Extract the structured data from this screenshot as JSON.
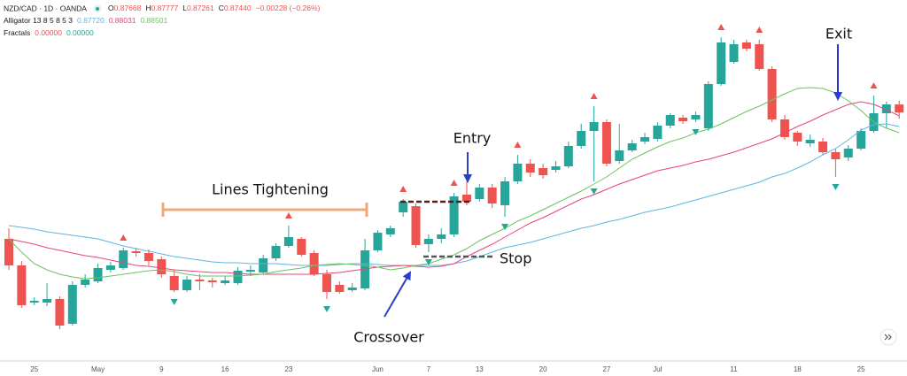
{
  "header": {
    "symbol": "NZD/CAD · 1D · OANDA",
    "quote": [
      {
        "key": "O",
        "value": "0.87668"
      },
      {
        "key": "H",
        "value": "0.87777"
      },
      {
        "key": "L",
        "value": "0.87261"
      },
      {
        "key": "C",
        "value": "0.87440"
      }
    ],
    "change": "−0.00228 (−0.26%)",
    "alligator": {
      "label": "Alligator 13 8 5 8 5 3",
      "values": [
        "0.87720",
        "0.88031",
        "0.88501"
      ]
    },
    "fractals": {
      "label": "Fractals",
      "values": [
        "0.00000",
        "0.00000"
      ]
    }
  },
  "chart_data": {
    "type": "candlestick",
    "categories": [
      null,
      null,
      "25",
      null,
      null,
      null,
      null,
      "May",
      null,
      null,
      null,
      null,
      "9",
      null,
      null,
      null,
      null,
      "16",
      null,
      null,
      null,
      null,
      "23",
      null,
      null,
      null,
      null,
      null,
      null,
      "Jun",
      null,
      null,
      null,
      "7",
      null,
      null,
      null,
      "13",
      null,
      null,
      null,
      null,
      "20",
      null,
      null,
      null,
      null,
      "27",
      null,
      null,
      null,
      "Jul",
      null,
      null,
      null,
      null,
      null,
      "11",
      null,
      null,
      null,
      null,
      "18",
      null,
      null,
      null,
      null,
      "25",
      null,
      null,
      null
    ],
    "open": [
      0.8387,
      0.8312,
      0.8207,
      0.8207,
      0.8217,
      0.8147,
      0.8257,
      0.8267,
      0.82995,
      0.83045,
      0.8352,
      0.8347,
      0.83295,
      0.8282,
      0.8242,
      0.8272,
      0.82695,
      0.8262,
      0.8262,
      0.82945,
      0.8292,
      0.8332,
      0.8367,
      0.8387,
      0.8347,
      0.8287,
      0.8257,
      0.8242,
      0.8247,
      0.83545,
      0.83995,
      0.8462,
      0.84795,
      0.8372,
      0.8387,
      0.83995,
      0.8512,
      0.84995,
      0.8532,
      0.8482,
      0.85495,
      0.85995,
      0.8587,
      0.8582,
      0.8592,
      0.86495,
      0.8692,
      0.8717,
      0.8607,
      0.8637,
      0.8662,
      0.86695,
      0.8707,
      0.87295,
      0.87245,
      0.86995,
      0.88245,
      0.8887,
      0.8942,
      0.8937,
      0.8867,
      0.87245,
      0.8687,
      0.8657,
      0.8662,
      0.8632,
      0.8617,
      0.8642,
      0.8692,
      0.8742,
      0.87668
    ],
    "high": [
      0.8417,
      0.83245,
      0.8222,
      0.8262,
      0.82245,
      0.8267,
      0.8287,
      0.8317,
      0.8322,
      0.8362,
      0.8362,
      0.8357,
      0.8337,
      0.82995,
      0.8282,
      0.8287,
      0.8277,
      0.8282,
      0.8307,
      0.8312,
      0.8342,
      0.83745,
      0.84245,
      0.8392,
      0.83545,
      0.82995,
      0.8267,
      0.8262,
      0.8387,
      0.8412,
      0.84245,
      0.84995,
      0.8487,
      0.83995,
      0.8417,
      0.8517,
      0.85495,
      0.8542,
      0.8542,
      0.8562,
      0.86245,
      0.8612,
      0.85995,
      0.8607,
      0.8662,
      0.8712,
      0.8762,
      0.87245,
      0.8712,
      0.8667,
      0.8687,
      0.8717,
      0.8742,
      0.8737,
      0.8747,
      0.8832,
      0.8957,
      0.89495,
      0.89495,
      0.89495,
      0.88745,
      0.8737,
      0.8692,
      0.8682,
      0.8672,
      0.8642,
      0.8652,
      0.86995,
      0.8792,
      0.87745,
      0.87777
    ],
    "low": [
      0.82995,
      0.8192,
      0.81995,
      0.8197,
      0.8132,
      0.8142,
      0.82495,
      0.8262,
      0.8292,
      0.82995,
      0.8337,
      0.8312,
      0.8277,
      0.8237,
      0.8237,
      0.8242,
      0.82495,
      0.8257,
      0.8257,
      0.8282,
      0.8287,
      0.83245,
      0.8362,
      0.8337,
      0.8282,
      0.8217,
      0.8232,
      0.8237,
      0.8242,
      0.83495,
      0.8392,
      0.84495,
      0.8362,
      0.83495,
      0.83745,
      0.8392,
      0.8482,
      0.8492,
      0.84745,
      0.84495,
      0.8542,
      0.8562,
      0.8557,
      0.85745,
      0.8587,
      0.8642,
      0.85495,
      0.8592,
      0.85995,
      0.8632,
      0.86545,
      0.8662,
      0.86995,
      0.8712,
      0.8717,
      0.8692,
      0.88195,
      0.8882,
      0.8917,
      0.8862,
      0.8717,
      0.8667,
      0.86495,
      0.8647,
      0.86245,
      0.8562,
      0.8607,
      0.8637,
      0.8687,
      0.86995,
      0.87261
    ],
    "close": [
      0.8312,
      0.81995,
      0.8212,
      0.8217,
      0.8142,
      0.8257,
      0.8272,
      0.83045,
      0.8312,
      0.83545,
      0.8347,
      0.83245,
      0.8287,
      0.8242,
      0.8272,
      0.8267,
      0.82645,
      0.82695,
      0.8297,
      0.82995,
      0.8332,
      0.8367,
      0.8392,
      0.8342,
      0.8287,
      0.8237,
      0.8237,
      0.82495,
      0.83545,
      0.84045,
      0.8417,
      0.8492,
      0.83695,
      0.8387,
      0.83995,
      0.8507,
      0.8492,
      0.8532,
      0.8487,
      0.85495,
      0.85995,
      0.85745,
      0.8567,
      0.8592,
      0.86495,
      0.8692,
      0.8717,
      0.85995,
      0.8637,
      0.8657,
      0.86745,
      0.8707,
      0.8737,
      0.87195,
      0.8737,
      0.88245,
      0.8942,
      0.8937,
      0.89245,
      0.8867,
      0.87245,
      0.86745,
      0.8662,
      0.8667,
      0.8632,
      0.8612,
      0.8642,
      0.8692,
      0.8742,
      0.8767,
      0.8744
    ],
    "up_color": "#26a69a",
    "down_color": "#ef5350",
    "overlays": [
      {
        "color": "#5fb4e2",
        "values": [
          0.84245,
          0.84195,
          0.84145,
          0.8407,
          0.8402,
          0.8397,
          0.8392,
          0.8387,
          0.8377,
          0.8367,
          0.83595,
          0.8352,
          0.83445,
          0.8337,
          0.8332,
          0.8327,
          0.8322,
          0.83195,
          0.83195,
          0.8317,
          0.8317,
          0.8317,
          0.83145,
          0.8312,
          0.8312,
          0.8312,
          0.83145,
          0.8317,
          0.8317,
          0.83145,
          0.8312,
          0.8312,
          0.8312,
          0.8312,
          0.8312,
          0.8317,
          0.83245,
          0.8337,
          0.83495,
          0.8362,
          0.83695,
          0.8377,
          0.8387,
          0.8397,
          0.8407,
          0.8417,
          0.84245,
          0.84345,
          0.8442,
          0.8452,
          0.8462,
          0.84695,
          0.8477,
          0.8487,
          0.8497,
          0.8507,
          0.8517,
          0.8527,
          0.8537,
          0.8547,
          0.8562,
          0.8572,
          0.8587,
          0.86045,
          0.86245,
          0.8642,
          0.8667,
          0.86945,
          0.87095,
          0.8712,
          0.87045
        ]
      },
      {
        "color": "#e8457a",
        "values": [
          0.8387,
          0.83795,
          0.8372,
          0.8362,
          0.83545,
          0.8347,
          0.83395,
          0.83345,
          0.8327,
          0.83195,
          0.8312,
          0.83095,
          0.83045,
          0.82995,
          0.8297,
          0.82945,
          0.8292,
          0.8292,
          0.82895,
          0.8287,
          0.8287,
          0.8287,
          0.8287,
          0.8287,
          0.8287,
          0.82895,
          0.8292,
          0.8297,
          0.8302,
          0.8307,
          0.83095,
          0.8312,
          0.83095,
          0.8307,
          0.83095,
          0.8317,
          0.8337,
          0.83545,
          0.8372,
          0.8392,
          0.8412,
          0.8432,
          0.8447,
          0.84645,
          0.8482,
          0.84995,
          0.8512,
          0.8527,
          0.8542,
          0.85545,
          0.8567,
          0.85795,
          0.8587,
          0.85945,
          0.86045,
          0.8612,
          0.8622,
          0.8632,
          0.86445,
          0.8657,
          0.86695,
          0.8687,
          0.87045,
          0.87195,
          0.8737,
          0.8752,
          0.8767,
          0.87745,
          0.8767,
          0.8752,
          0.87345
        ]
      },
      {
        "color": "#6cc35f",
        "values": [
          0.8387,
          0.83495,
          0.8317,
          0.82995,
          0.8287,
          0.82795,
          0.82745,
          0.8277,
          0.8282,
          0.8287,
          0.8292,
          0.8297,
          0.82995,
          0.82945,
          0.8287,
          0.8282,
          0.8282,
          0.8282,
          0.8282,
          0.82845,
          0.8287,
          0.82945,
          0.82995,
          0.83045,
          0.8312,
          0.83145,
          0.8317,
          0.83145,
          0.8312,
          0.8307,
          0.82995,
          0.83045,
          0.8312,
          0.8317,
          0.83295,
          0.8342,
          0.83595,
          0.8382,
          0.83995,
          0.8417,
          0.8437,
          0.8452,
          0.84695,
          0.8487,
          0.85045,
          0.8522,
          0.8542,
          0.8562,
          0.8587,
          0.8612,
          0.86295,
          0.8647,
          0.8662,
          0.8672,
          0.8687,
          0.8697,
          0.8712,
          0.87295,
          0.8747,
          0.8762,
          0.87795,
          0.8797,
          0.8812,
          0.88145,
          0.8812,
          0.87995,
          0.8777,
          0.87495,
          0.8717,
          0.86995,
          0.8687
        ]
      }
    ],
    "fractals": [
      {
        "direction": "up",
        "color": "#ef5350",
        "values": [
          null,
          null,
          null,
          null,
          null,
          null,
          null,
          null,
          null,
          0.8362,
          null,
          null,
          null,
          null,
          null,
          null,
          null,
          null,
          null,
          null,
          null,
          null,
          0.84245,
          null,
          null,
          null,
          null,
          null,
          null,
          null,
          null,
          0.84995,
          null,
          null,
          null,
          0.8517,
          null,
          null,
          null,
          null,
          0.86245,
          null,
          null,
          null,
          null,
          null,
          0.8762,
          null,
          null,
          null,
          null,
          null,
          null,
          null,
          null,
          null,
          0.8957,
          null,
          null,
          0.89495,
          null,
          null,
          null,
          null,
          null,
          null,
          null,
          null,
          0.8792,
          null,
          null
        ]
      },
      {
        "direction": "down",
        "color": "#26a69a",
        "values": [
          null,
          null,
          null,
          null,
          null,
          null,
          null,
          null,
          null,
          null,
          null,
          null,
          null,
          0.8237,
          null,
          null,
          null,
          null,
          null,
          null,
          null,
          null,
          null,
          null,
          null,
          0.8217,
          null,
          null,
          null,
          null,
          null,
          null,
          null,
          0.83495,
          null,
          null,
          null,
          null,
          null,
          0.84495,
          null,
          null,
          null,
          null,
          null,
          null,
          0.85495,
          null,
          null,
          null,
          null,
          null,
          null,
          null,
          0.8717,
          null,
          null,
          null,
          null,
          null,
          null,
          null,
          null,
          null,
          null,
          0.8562,
          null,
          null,
          null,
          null,
          null
        ]
      }
    ],
    "annotations": {
      "tightening": "Lines Tightening",
      "entry": "Entry",
      "exit": "Exit",
      "stop": "Stop",
      "crossover": "Crossover"
    }
  }
}
